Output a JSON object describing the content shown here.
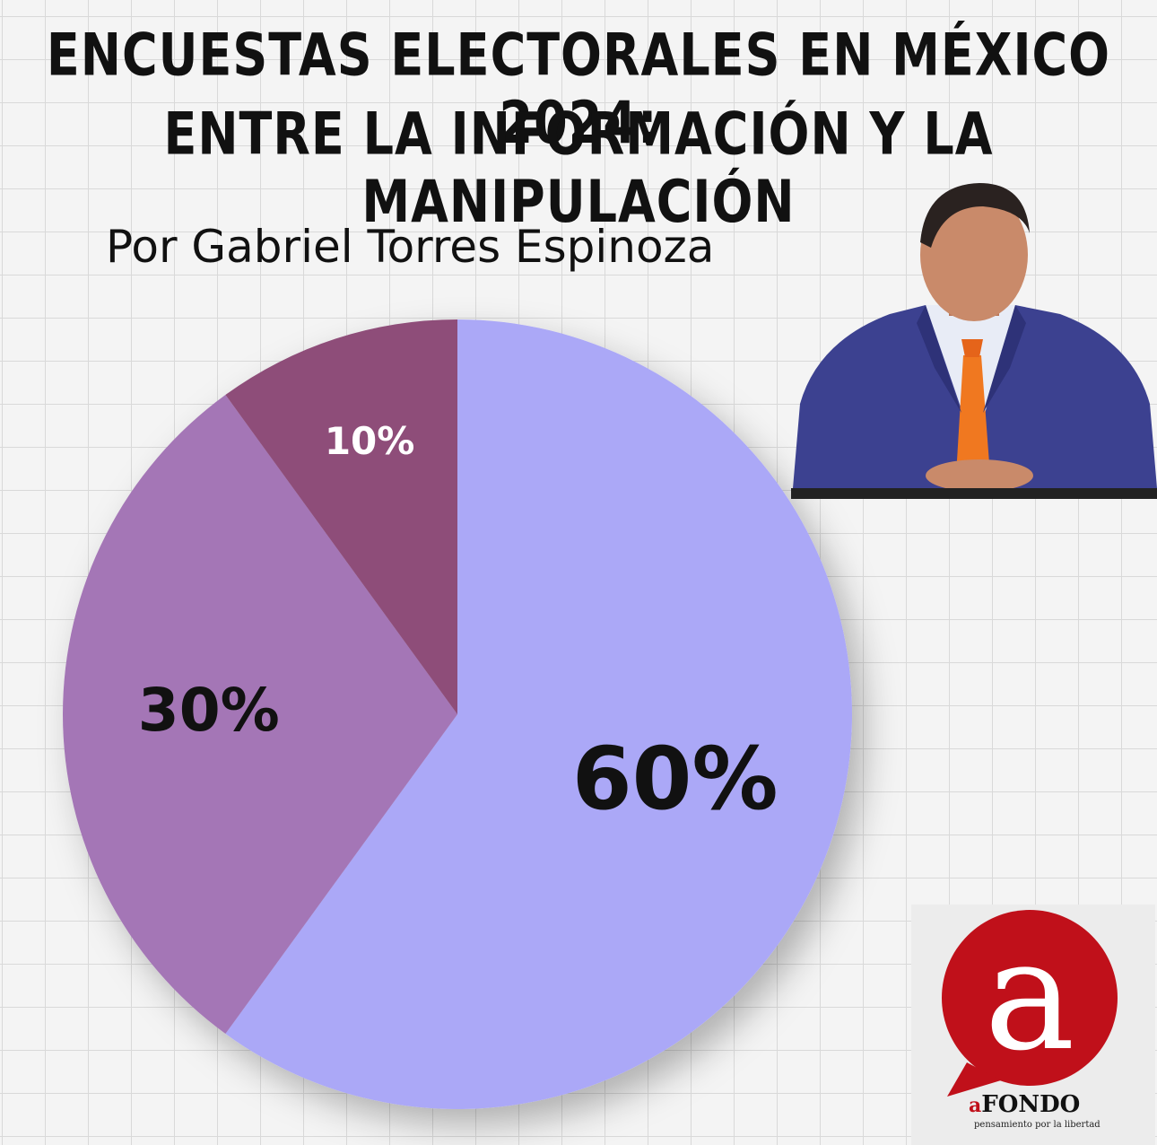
{
  "header": {
    "title_line1": "ENCUESTAS ELECTORALES EN MÉXICO 2024:",
    "title_line2": "ENTRE LA INFORMACIÓN Y LA MANIPULACIÓN",
    "byline": "Por Gabriel Torres Espinoza"
  },
  "logo": {
    "brand_prefix": "a",
    "brand_name": "FONDO",
    "tagline": "pensamiento por la libertad",
    "brand_color": "#c0101a"
  },
  "chart_data": {
    "type": "pie",
    "labels": [
      "60%",
      "30%",
      "10%"
    ],
    "values": [
      60,
      30,
      10
    ],
    "colors": [
      "#aba8f7",
      "#a476b6",
      "#8e4d79"
    ],
    "label_colors": [
      "#111111",
      "#111111",
      "#ffffff"
    ]
  }
}
